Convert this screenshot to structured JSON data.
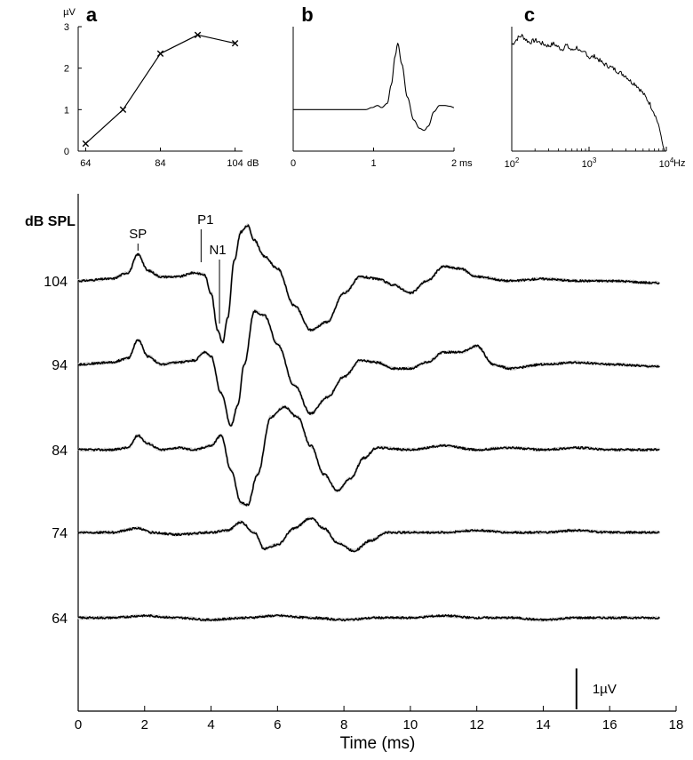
{
  "chart_data": [
    {
      "panel": "a",
      "type": "line",
      "y_unit": "µV",
      "x_unit": "dB",
      "x_ticks": [
        "64",
        "84",
        "104"
      ],
      "y_ticks": [
        "0",
        "1",
        "2",
        "3"
      ],
      "xlim": [
        62,
        106
      ],
      "ylim": [
        0,
        3
      ],
      "marker": "x",
      "x": [
        64,
        74,
        84,
        94,
        104
      ],
      "y": [
        0.18,
        1.0,
        2.35,
        2.8,
        2.6
      ]
    },
    {
      "panel": "b",
      "type": "line",
      "x_unit": "ms",
      "x_ticks": [
        "0",
        "1",
        "2"
      ],
      "xlim": [
        0,
        2
      ],
      "ylim": [
        0,
        3
      ],
      "x": [
        0,
        0.5,
        0.9,
        0.98,
        1.05,
        1.1,
        1.17,
        1.22,
        1.27,
        1.3,
        1.35,
        1.42,
        1.5,
        1.57,
        1.63,
        1.68,
        1.75,
        1.82,
        1.88,
        1.95,
        2.0
      ],
      "y": [
        1.0,
        1.0,
        1.0,
        1.05,
        1.1,
        1.05,
        1.15,
        1.6,
        2.3,
        2.6,
        2.1,
        1.3,
        0.75,
        0.55,
        0.5,
        0.6,
        0.95,
        1.1,
        1.1,
        1.08,
        1.05
      ]
    },
    {
      "panel": "c",
      "type": "line",
      "x_unit": "Hz",
      "x_scale": "log",
      "x_ticks": [
        "10^2",
        "10^3",
        "10^4"
      ],
      "xlim": [
        100,
        10000
      ],
      "ylim": [
        0,
        1
      ],
      "x": [
        100,
        110,
        120,
        135,
        150,
        170,
        200,
        250,
        300,
        350,
        400,
        450,
        500,
        600,
        700,
        800,
        900,
        1000,
        1200,
        1500,
        2000,
        2500,
        3000,
        3500,
        4000,
        5000,
        6000,
        7000,
        8000,
        8500,
        9000,
        9500,
        10000
      ],
      "y": [
        0.92,
        0.95,
        0.98,
        1.0,
        0.97,
        0.94,
        0.96,
        0.93,
        0.91,
        0.93,
        0.9,
        0.88,
        0.92,
        0.87,
        0.9,
        0.84,
        0.86,
        0.81,
        0.82,
        0.76,
        0.72,
        0.68,
        0.65,
        0.6,
        0.58,
        0.5,
        0.42,
        0.33,
        0.22,
        0.14,
        0.05,
        0.0,
        -0.05
      ]
    },
    {
      "panel": "main",
      "type": "line",
      "title": "dB SPL",
      "xlabel": "Time (ms)",
      "x_ticks": [
        "0",
        "2",
        "4",
        "6",
        "8",
        "10",
        "12",
        "14",
        "16",
        "18"
      ],
      "xlim": [
        0,
        18
      ],
      "scale_bar": {
        "value": 1,
        "label": "1µV"
      },
      "annotations": [
        {
          "text": "SP",
          "x": 1.8
        },
        {
          "text": "P1",
          "x": 3.7
        },
        {
          "text": "N1",
          "x": 4.2
        }
      ],
      "series": [
        {
          "name": "104",
          "x": [
            0,
            1.0,
            1.5,
            1.8,
            2.1,
            2.5,
            3.0,
            3.5,
            3.8,
            4.0,
            4.2,
            4.35,
            4.5,
            4.7,
            4.9,
            5.1,
            5.3,
            5.6,
            6.0,
            6.5,
            7.0,
            7.5,
            8.0,
            8.5,
            9.0,
            9.5,
            10.0,
            10.5,
            11.0,
            11.5,
            12.0,
            13.0,
            14.0,
            15.0,
            16.0,
            17.5
          ],
          "y": [
            0,
            0.05,
            0.2,
            0.65,
            0.25,
            0.1,
            0.1,
            0.2,
            0.15,
            -0.3,
            -1.2,
            -1.5,
            -0.9,
            0.5,
            1.2,
            1.35,
            1.0,
            0.6,
            0.3,
            -0.6,
            -1.2,
            -1.0,
            -0.3,
            0.1,
            0.05,
            -0.1,
            -0.3,
            0.0,
            0.35,
            0.3,
            0.1,
            0.0,
            0.05,
            0.0,
            0.0,
            -0.05
          ]
        },
        {
          "name": "94",
          "x": [
            0,
            1.0,
            1.5,
            1.8,
            2.1,
            2.5,
            3.0,
            3.5,
            3.8,
            4.0,
            4.3,
            4.6,
            4.8,
            5.0,
            5.3,
            5.6,
            6.0,
            6.5,
            7.0,
            7.5,
            8.0,
            8.5,
            9.0,
            9.5,
            10.0,
            10.5,
            11.0,
            11.5,
            12.0,
            12.5,
            13.0,
            14.0,
            15.0,
            16.0,
            17.5
          ],
          "y": [
            0,
            0.05,
            0.15,
            0.6,
            0.2,
            0.0,
            0.05,
            0.1,
            0.3,
            0.2,
            -0.7,
            -1.5,
            -1.0,
            0.0,
            1.3,
            1.2,
            0.5,
            -0.5,
            -1.2,
            -0.8,
            -0.3,
            0.1,
            0.05,
            -0.1,
            -0.1,
            0.05,
            0.3,
            0.3,
            0.45,
            0.0,
            -0.1,
            0.0,
            0.05,
            0.0,
            -0.05
          ]
        },
        {
          "name": "84",
          "x": [
            0,
            1.0,
            1.5,
            1.8,
            2.1,
            2.5,
            3.0,
            3.5,
            4.0,
            4.3,
            4.6,
            4.9,
            5.1,
            5.4,
            5.8,
            6.2,
            6.6,
            7.0,
            7.4,
            7.8,
            8.2,
            8.6,
            9.0,
            10.0,
            11.0,
            12.0,
            13.0,
            14.0,
            15.0,
            16.0,
            17.5
          ],
          "y": [
            0,
            0.0,
            0.05,
            0.35,
            0.15,
            0.0,
            0.05,
            0.0,
            0.1,
            0.35,
            -0.5,
            -1.3,
            -1.35,
            -0.6,
            0.8,
            1.05,
            0.8,
            0.1,
            -0.6,
            -1.0,
            -0.7,
            -0.2,
            0.05,
            0.0,
            0.1,
            0.0,
            0.05,
            0.0,
            0.05,
            0.0,
            0.0
          ]
        },
        {
          "name": "74",
          "x": [
            0,
            1.0,
            1.8,
            2.2,
            3.0,
            4.0,
            4.5,
            4.9,
            5.3,
            5.6,
            6.0,
            6.5,
            7.0,
            7.4,
            7.8,
            8.3,
            8.8,
            9.3,
            10.0,
            11.0,
            12.0,
            13.0,
            14.0,
            15.0,
            16.0,
            17.5
          ],
          "y": [
            0,
            0.0,
            0.1,
            0.0,
            -0.05,
            0.0,
            0.05,
            0.25,
            0.0,
            -0.4,
            -0.3,
            0.1,
            0.35,
            0.1,
            -0.25,
            -0.45,
            -0.2,
            0.0,
            0.0,
            0.0,
            0.05,
            0.0,
            0.0,
            0.05,
            0.0,
            0.0
          ]
        },
        {
          "name": "64",
          "x": [
            0,
            1.0,
            2.0,
            3.0,
            4.0,
            5.0,
            6.0,
            7.0,
            8.0,
            9.0,
            10.0,
            11.0,
            12.0,
            13.0,
            14.0,
            15.0,
            16.0,
            17.5
          ],
          "y": [
            0,
            0.0,
            0.05,
            0.0,
            -0.05,
            0.0,
            0.05,
            0.0,
            -0.05,
            0.0,
            0.0,
            0.05,
            0.0,
            0.0,
            -0.05,
            0.0,
            0.0,
            0.0
          ]
        }
      ]
    }
  ]
}
